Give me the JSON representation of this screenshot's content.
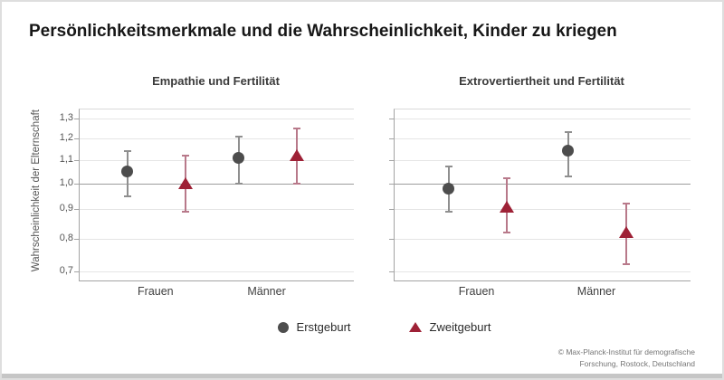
{
  "title": "Persönlichkeitsmerkmale und die Wahrscheinlichkeit, Kinder zu kriegen",
  "source_line1": "© Max-Planck-Institut für demografische",
  "source_line2": "Forschung, Rostock, Deutschland",
  "chart_data": {
    "type": "scatter",
    "subtype": "point-range-errorbar",
    "ylabel": "Wahrscheinlichkeit der Elternschaft",
    "y_axis": {
      "scale": "log",
      "range": [
        0.7,
        1.3
      ],
      "reference": 1.0,
      "ticks": [
        {
          "label": "1,3",
          "value": 1.3
        },
        {
          "label": "1,2",
          "value": 1.2
        },
        {
          "label": "1,1",
          "value": 1.1
        },
        {
          "label": "1,0",
          "value": 1.0
        },
        {
          "label": "0,9",
          "value": 0.9
        },
        {
          "label": "0,8",
          "value": 0.8
        },
        {
          "label": "0,7",
          "value": 0.7
        }
      ]
    },
    "categories": [
      "Frauen",
      "Männer"
    ],
    "panels": [
      {
        "title": "Empathie und Fertilität",
        "series": [
          {
            "name": "Erstgeburt",
            "marker": "circle",
            "color": "#4d4d4d",
            "whisker_color": "#8f8f8f",
            "points": [
              {
                "category": "Frauen",
                "value": 1.05,
                "ci_low": 0.95,
                "ci_high": 1.14
              },
              {
                "category": "Männer",
                "value": 1.11,
                "ci_low": 1.0,
                "ci_high": 1.21
              }
            ]
          },
          {
            "name": "Zweitgeburt",
            "marker": "triangle",
            "color": "#9e2136",
            "whisker_color": "#b8798a",
            "points": [
              {
                "category": "Frauen",
                "value": 1.0,
                "ci_low": 0.89,
                "ci_high": 1.12
              },
              {
                "category": "Männer",
                "value": 1.12,
                "ci_low": 1.0,
                "ci_high": 1.25
              }
            ]
          }
        ]
      },
      {
        "title": "Extrovertiertheit und Fertilität",
        "series": [
          {
            "name": "Erstgeburt",
            "marker": "circle",
            "color": "#4d4d4d",
            "whisker_color": "#8f8f8f",
            "points": [
              {
                "category": "Frauen",
                "value": 0.98,
                "ci_low": 0.89,
                "ci_high": 1.07
              },
              {
                "category": "Männer",
                "value": 1.14,
                "ci_low": 1.03,
                "ci_high": 1.23
              }
            ]
          },
          {
            "name": "Zweitgeburt",
            "marker": "triangle",
            "color": "#9e2136",
            "whisker_color": "#b8798a",
            "points": [
              {
                "category": "Frauen",
                "value": 0.91,
                "ci_low": 0.82,
                "ci_high": 1.02
              },
              {
                "category": "Männer",
                "value": 0.82,
                "ci_low": 0.72,
                "ci_high": 0.92
              }
            ]
          }
        ]
      }
    ]
  }
}
